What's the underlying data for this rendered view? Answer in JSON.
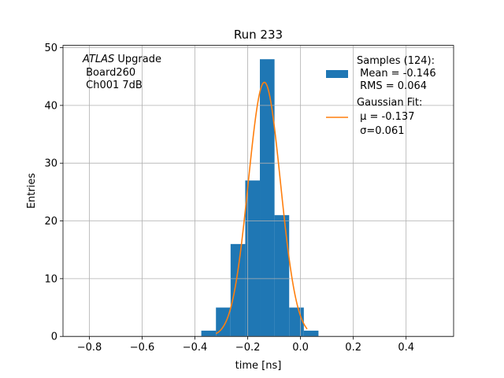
{
  "chart_data": {
    "type": "bar",
    "title": "Run 233",
    "xlabel": "time [ns]",
    "ylabel": "Entries",
    "xlim": [
      -0.9,
      0.58
    ],
    "ylim": [
      0,
      50.4
    ],
    "xticks": [
      -0.8,
      -0.6,
      -0.4,
      -0.2,
      0.0,
      0.2,
      0.4
    ],
    "xtick_labels": [
      "−0.8",
      "−0.6",
      "−0.4",
      "−0.2",
      "0.0",
      "0.2",
      "0.4"
    ],
    "yticks": [
      0,
      10,
      20,
      30,
      40,
      50
    ],
    "ytick_labels": [
      "0",
      "10",
      "20",
      "30",
      "40",
      "50"
    ],
    "grid": true,
    "annotation": {
      "italic": "ATLAS",
      "line1_rest": " Upgrade",
      "line2": " Board260",
      "line3": " Ch001 7dB"
    },
    "histogram": {
      "name_lines": [
        "Samples (124):",
        " Mean = -0.146",
        " RMS = 0.064"
      ],
      "color": "#1f77b4",
      "bin_edges": [
        -0.376,
        -0.3205,
        -0.265,
        -0.2095,
        -0.154,
        -0.0985,
        -0.043,
        0.0125,
        0.068
      ],
      "bin_counts": [
        1,
        5,
        16,
        27,
        48,
        21,
        5,
        1
      ]
    },
    "fit": {
      "name_lines": [
        "Gaussian Fit:",
        " μ = -0.137",
        " σ=0.061"
      ],
      "color": "#ff7f0e",
      "amplitude": 44,
      "mu": -0.137,
      "sigma": 0.061,
      "x_range": [
        -0.32,
        0.025
      ]
    },
    "legend_position": "upper-right"
  }
}
